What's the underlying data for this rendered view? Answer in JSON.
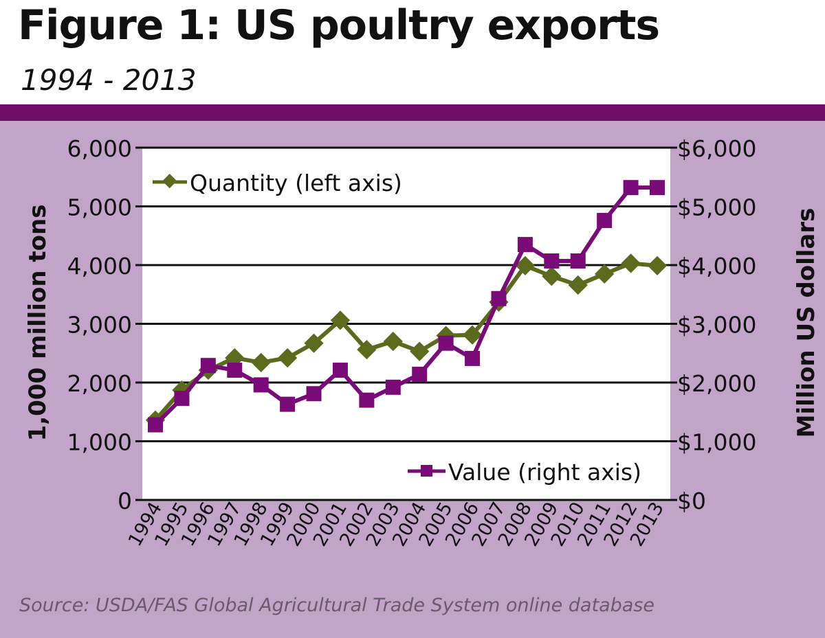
{
  "header": {
    "title": "Figure 1: US poultry exports",
    "subtitle": "1994 - 2013"
  },
  "colors": {
    "band": "#6e0d68",
    "panel": "#c3a4c9",
    "quantity": "#5b6b1e",
    "value": "#7a0a78"
  },
  "source": "Source: USDA/FAS Global Agricultural Trade System online database",
  "chart_data": {
    "type": "line",
    "title": "Figure 1: US poultry exports",
    "subtitle": "1994 - 2013",
    "xlabel": "",
    "ylabel": "1,000 million tons",
    "y2label": "Million US dollars",
    "ylim": [
      0,
      6000
    ],
    "y2lim": [
      0,
      6000
    ],
    "y_ticks": [
      "0",
      "1,000",
      "2,000",
      "3,000",
      "4,000",
      "5,000",
      "6,000"
    ],
    "y2_ticks": [
      "$0",
      "$1,000",
      "$2,000",
      "$3,000",
      "$4,000",
      "$5,000",
      "$6,000"
    ],
    "grid": true,
    "categories": [
      "1994",
      "1995",
      "1996",
      "1997",
      "1998",
      "1999",
      "2000",
      "2001",
      "2002",
      "2003",
      "2004",
      "2005",
      "2006",
      "2007",
      "2008",
      "2009",
      "2010",
      "2011",
      "2012",
      "2013"
    ],
    "series": [
      {
        "name": "Quantity (left axis)",
        "axis": "left",
        "marker": "diamond",
        "color": "#5b6b1e",
        "values": [
          1360,
          1870,
          2210,
          2420,
          2340,
          2420,
          2670,
          3060,
          2560,
          2700,
          2530,
          2800,
          2810,
          3370,
          3990,
          3810,
          3660,
          3850,
          4030,
          3990
        ]
      },
      {
        "name": "Value (right axis)",
        "axis": "right",
        "marker": "square",
        "color": "#7a0a78",
        "values": [
          1280,
          1730,
          2290,
          2210,
          1960,
          1630,
          1810,
          2210,
          1700,
          1920,
          2140,
          2670,
          2410,
          3430,
          4350,
          4070,
          4070,
          4760,
          5320,
          5320
        ]
      }
    ],
    "legend": [
      {
        "label": "Quantity (left axis)",
        "position": "top-left"
      },
      {
        "label": "Value (right axis)",
        "position": "bottom-right"
      }
    ]
  }
}
